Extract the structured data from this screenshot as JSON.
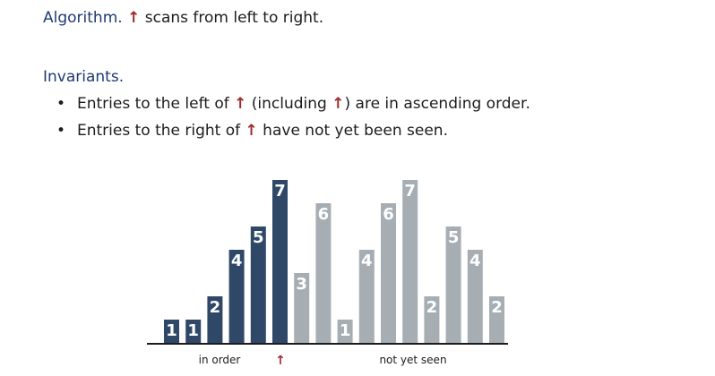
{
  "algorithm": {
    "label": "Algorithm.",
    "arrow": "↑",
    "text": "scans from left to right."
  },
  "invariants": {
    "title": "Invariants.",
    "bullets": [
      {
        "before": "Entries to the left of ",
        "arrow1": "↑",
        "middle": " (including ",
        "arrow2": "↑",
        "after": ") are in ascending order."
      },
      {
        "before": "Entries to the right of ",
        "arrow1": "↑",
        "after": " have not yet been seen."
      }
    ],
    "bullet_char": "•"
  },
  "labels": {
    "in_order": "in order",
    "pointer": "↑",
    "not_yet_seen": "not yet seen"
  },
  "colors": {
    "dark_bar": "#2f4868",
    "light_bar": "#a6aeb4",
    "pointer_bar": "#2f4868",
    "arrow": "#a0292c",
    "heading": "#1f3a72"
  },
  "chart_data": {
    "type": "bar",
    "values": [
      1,
      1,
      2,
      4,
      5,
      7,
      3,
      6,
      1,
      4,
      6,
      7,
      2,
      5,
      4,
      2
    ],
    "pointer_index": 5,
    "sorted_count": 6
  }
}
